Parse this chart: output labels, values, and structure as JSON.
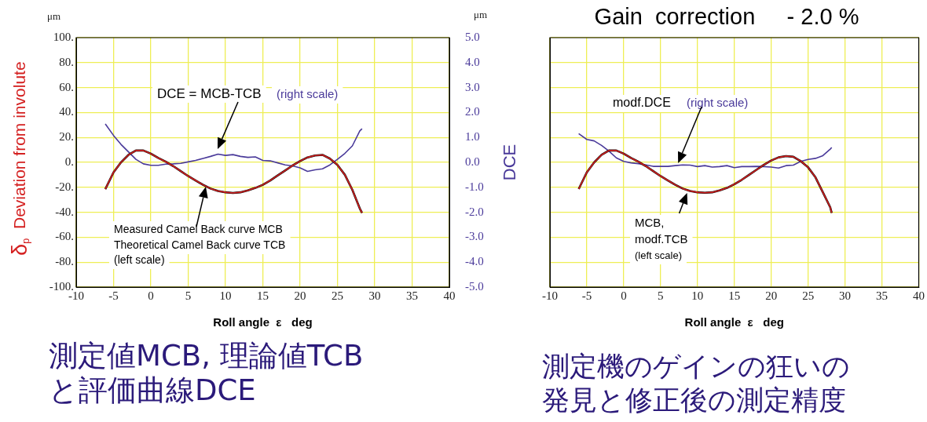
{
  "chart_data": [
    {
      "type": "line",
      "ylabel": "δ$_{p}$ Deviation from involute",
      "y2label": "DCE",
      "xlabel": "Roll angle  ε   deg",
      "x": [
        -6.1,
        -5,
        -4,
        -3,
        -2,
        -1,
        0,
        1,
        2,
        3,
        4,
        5,
        6,
        7,
        8,
        9,
        10,
        11,
        12,
        13,
        14,
        15,
        16,
        17,
        18,
        19,
        20,
        21,
        22,
        23,
        24,
        25,
        26,
        27,
        28,
        28.3
      ],
      "series": [
        {
          "color": "#d42020",
          "values": [
            -21.5,
            -8,
            0,
            6,
            9.5,
            9.5,
            7,
            3.5,
            0.5,
            -3,
            -7,
            -11,
            -14.5,
            -18,
            -21,
            -23,
            -24,
            -24.5,
            -24,
            -22.5,
            -20.5,
            -18,
            -14.5,
            -10.5,
            -6.5,
            -2.5,
            1,
            4,
            5.5,
            6,
            3,
            -2,
            -10,
            -22,
            -37,
            -40.5
          ]
        },
        {
          "color": "#000000",
          "values": [
            -21.5,
            -8,
            0,
            6,
            9.5,
            9.5,
            7,
            3.5,
            0.5,
            -3,
            -7,
            -11,
            -14.5,
            -18,
            -21,
            -23,
            -24,
            -24.5,
            -24,
            -22.5,
            -20.5,
            -18,
            -14.5,
            -10.5,
            -6.5,
            -2.5,
            1,
            4,
            5.5,
            6,
            3,
            -2,
            -10,
            -22,
            -37,
            -40.5
          ]
        },
        {
          "color": "#4a3a9a",
          "axis": "y2",
          "values": [
            1.54,
            1.08,
            0.72,
            0.42,
            0.12,
            -0.06,
            -0.12,
            -0.12,
            -0.07,
            -0.06,
            -0.04,
            0.02,
            0.08,
            0.16,
            0.24,
            0.33,
            0.28,
            0.31,
            0.24,
            0.2,
            0.22,
            0.08,
            0.06,
            -0.02,
            -0.1,
            -0.14,
            -0.22,
            -0.36,
            -0.3,
            -0.26,
            -0.1,
            0.12,
            0.36,
            0.66,
            1.26,
            1.35
          ]
        }
      ],
      "xlim": [
        -10,
        40
      ],
      "xticks": [
        -10,
        -5,
        0,
        5,
        10,
        15,
        20,
        25,
        30,
        35,
        40
      ],
      "ylim": [
        -100,
        100
      ],
      "yticks": [
        {
          "value": -100,
          "label": "-100."
        },
        {
          "value": -80,
          "label": "-80."
        },
        {
          "value": -60,
          "label": "-60."
        },
        {
          "value": -40,
          "label": "-40."
        },
        {
          "value": -20,
          "label": "-20."
        },
        {
          "value": 0,
          "label": "0."
        },
        {
          "value": 20,
          "label": "20."
        },
        {
          "value": 40,
          "label": "40."
        },
        {
          "value": 60,
          "label": "60."
        },
        {
          "value": 80,
          "label": "80."
        },
        {
          "value": 100,
          "label": "100."
        }
      ],
      "y2lim": [
        -5,
        5
      ],
      "y2ticks": [
        {
          "value": -5,
          "label": "-5.0"
        },
        {
          "value": -4,
          "label": "-4.0"
        },
        {
          "value": -3,
          "label": "-3.0"
        },
        {
          "value": -2,
          "label": "-2.0"
        },
        {
          "value": -1,
          "label": "-1.0"
        },
        {
          "value": 0,
          "label": "0.0"
        },
        {
          "value": 1,
          "label": "1.0"
        },
        {
          "value": 2,
          "label": "2.0"
        },
        {
          "value": 3,
          "label": "3.0"
        },
        {
          "value": 4,
          "label": "4.0"
        },
        {
          "value": 5,
          "label": "5.0"
        }
      ],
      "grid": true,
      "legend": false,
      "annotations": [
        "μm",
        "μm",
        "DCE = MCB-TCB",
        "(right scale)",
        "Measured Camel Back curve MCB",
        "Theoretical Camel Back curve TCB",
        "(left scale)",
        "測定値MCB, 理論値TCB",
        "と評価曲線DCE"
      ]
    },
    {
      "type": "line",
      "title": "Gain  correction     - 2.0 %",
      "xlabel": "Roll angle  ε   deg",
      "x": [
        -6.1,
        -5,
        -4,
        -3,
        -2,
        -1,
        0,
        1,
        2,
        3,
        4,
        5,
        6,
        7,
        8,
        9,
        10,
        11,
        12,
        13,
        14,
        15,
        16,
        17,
        18,
        19,
        20,
        21,
        22,
        23,
        24,
        25,
        26,
        27,
        28,
        28.2
      ],
      "series": [
        {
          "color": "#d42020",
          "values": [
            -21.4,
            -8,
            0,
            6,
            9.5,
            9.5,
            7,
            3.5,
            0.5,
            -3,
            -7,
            -11,
            -14.5,
            -18,
            -21,
            -23,
            -24,
            -24.4,
            -24,
            -22.5,
            -20.5,
            -17.5,
            -14,
            -10,
            -6,
            -2,
            1.5,
            4,
            5,
            4.5,
            1,
            -4,
            -12,
            -24,
            -36,
            -40.5
          ]
        },
        {
          "color": "#000000",
          "values": [
            -21.4,
            -8,
            0,
            6,
            9.5,
            9.5,
            7,
            3.5,
            0.5,
            -3,
            -7,
            -11,
            -14.5,
            -18,
            -21,
            -23,
            -24,
            -24.4,
            -24,
            -22.5,
            -20.5,
            -17.5,
            -14,
            -10,
            -6,
            -2,
            1.5,
            4,
            5,
            4.5,
            1,
            -4,
            -12,
            -24,
            -36,
            -40.5
          ]
        },
        {
          "color": "#4a3a9a",
          "axis": "y2",
          "values": [
            1.15,
            0.92,
            0.86,
            0.68,
            0.45,
            0.18,
            0.04,
            -0.02,
            -0.05,
            -0.1,
            -0.16,
            -0.16,
            -0.16,
            -0.13,
            -0.1,
            -0.11,
            -0.17,
            -0.13,
            -0.19,
            -0.17,
            -0.13,
            -0.21,
            -0.17,
            -0.17,
            -0.16,
            -0.17,
            -0.19,
            -0.23,
            -0.13,
            -0.11,
            0.04,
            0.12,
            0.16,
            0.27,
            0.53,
            0.6
          ]
        }
      ],
      "xlim": [
        -10,
        40
      ],
      "xticks": [
        -10,
        -5,
        0,
        5,
        10,
        15,
        20,
        25,
        30,
        35,
        40
      ],
      "ylim": [
        -100,
        100
      ],
      "yticks": [
        -100,
        -80,
        -60,
        -40,
        -20,
        0,
        20,
        40,
        60,
        80,
        100
      ],
      "y2lim": [
        -5,
        5
      ],
      "tick_labels": "x",
      "grid": true,
      "legend": false,
      "annotations": [
        "modf.DCE",
        "(right scale)",
        "MCB,",
        "modf.TCB",
        "(left scale)",
        "測定機のゲインの狂いの",
        "発見と修正後の測定精度"
      ]
    }
  ]
}
